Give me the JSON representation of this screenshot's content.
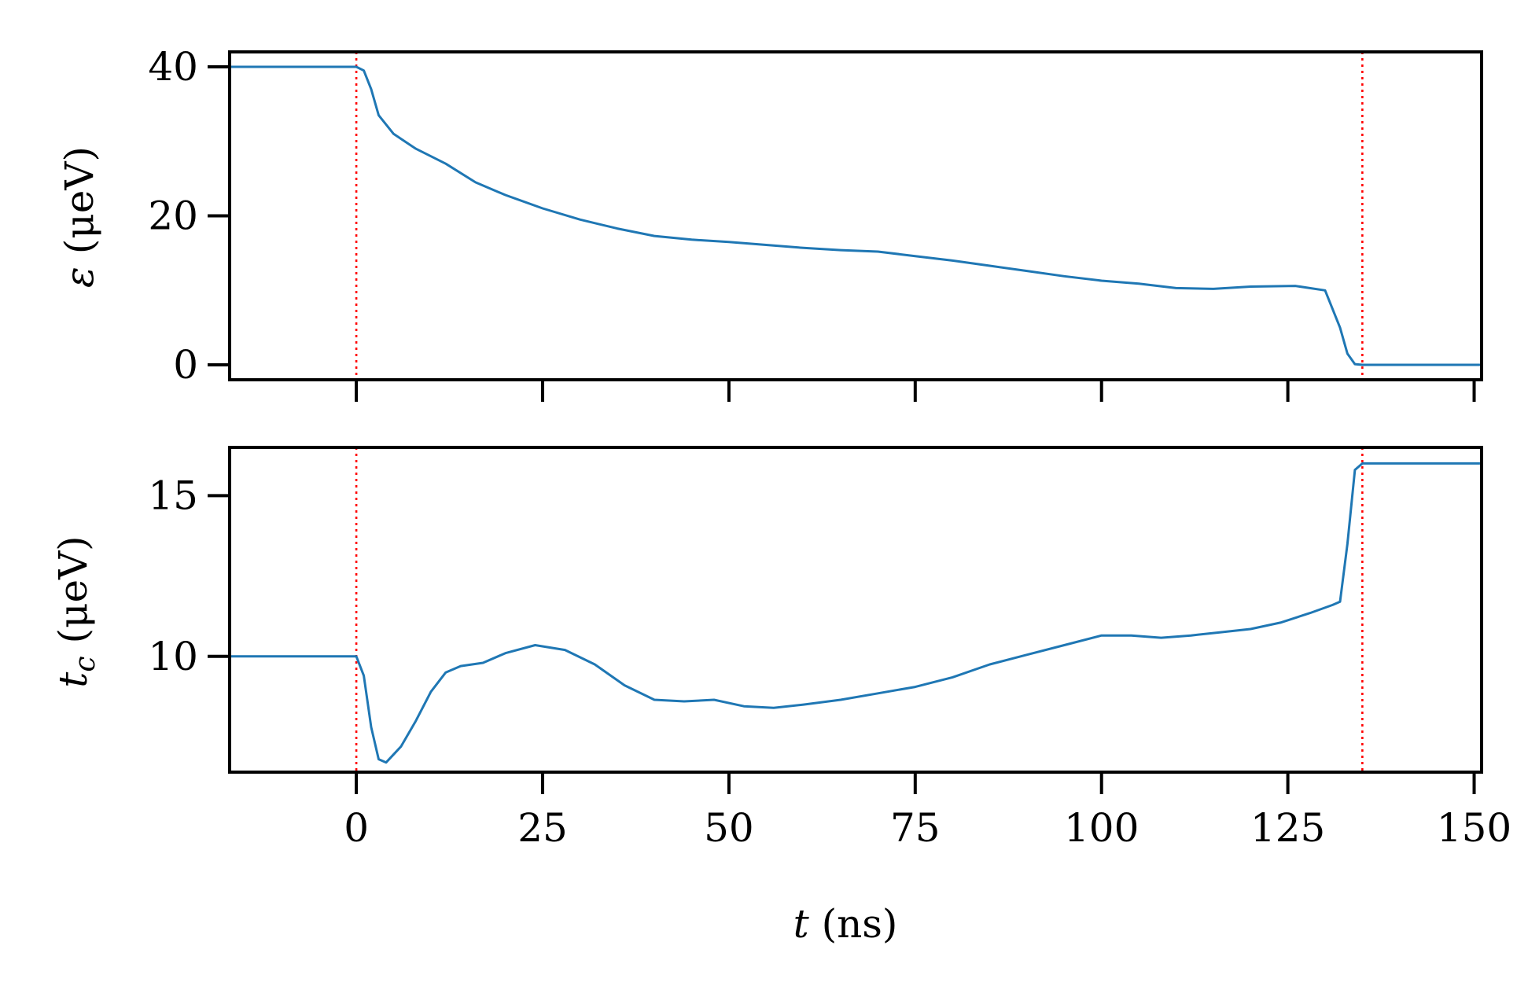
{
  "chart_data": [
    {
      "type": "line",
      "panel": "top",
      "ylabel": "ε (μeV)",
      "ylabel_parts": {
        "symbol": "ε",
        "unit": "(μeV)"
      },
      "xlim": [
        -17,
        151
      ],
      "ylim": [
        -2,
        42
      ],
      "xticks": [
        0,
        25,
        50,
        75,
        100,
        125,
        150
      ],
      "yticks": [
        0,
        20,
        40
      ],
      "ytick_labels": [
        "0",
        "20",
        "40"
      ],
      "vlines": {
        "x": [
          0,
          135
        ],
        "color": "#ff0000",
        "style": "dotted"
      },
      "series": [
        {
          "color": "#1f77b4",
          "x": [
            -17,
            -10,
            0,
            1,
            2,
            3,
            5,
            8,
            12,
            16,
            20,
            25,
            30,
            35,
            40,
            45,
            50,
            55,
            60,
            65,
            70,
            75,
            80,
            85,
            90,
            95,
            100,
            105,
            110,
            115,
            120,
            126,
            130,
            132,
            133,
            134,
            135,
            140,
            151
          ],
          "y": [
            40,
            40,
            40,
            39.5,
            37,
            33.5,
            31,
            29,
            27,
            24.5,
            22.8,
            21,
            19.5,
            18.3,
            17.3,
            16.8,
            16.5,
            16.1,
            15.7,
            15.4,
            15.2,
            14.6,
            14,
            13.3,
            12.6,
            11.9,
            11.3,
            10.9,
            10.3,
            10.2,
            10.5,
            10.6,
            10,
            5,
            1.5,
            0.1,
            0,
            0,
            0
          ]
        }
      ]
    },
    {
      "type": "line",
      "panel": "bottom",
      "xlabel": "t (ns)",
      "xlabel_parts": {
        "symbol": "t",
        "unit": "(ns)"
      },
      "ylabel": "t_c (μeV)",
      "ylabel_parts": {
        "symbol": "t",
        "subscript": "c",
        "unit": "(μeV)"
      },
      "xlim": [
        -17,
        151
      ],
      "ylim": [
        6.4,
        16.5
      ],
      "xticks": [
        0,
        25,
        50,
        75,
        100,
        125,
        150
      ],
      "xtick_labels": [
        "0",
        "25",
        "50",
        "75",
        "100",
        "125",
        "150"
      ],
      "yticks": [
        10,
        15
      ],
      "ytick_labels": [
        "10",
        "15"
      ],
      "vlines": {
        "x": [
          0,
          135
        ],
        "color": "#ff0000",
        "style": "dotted"
      },
      "series": [
        {
          "color": "#1f77b4",
          "x": [
            -17,
            -10,
            0,
            1,
            2,
            3,
            4,
            6,
            8,
            10,
            12,
            14,
            17,
            20,
            24,
            28,
            32,
            36,
            40,
            44,
            48,
            52,
            56,
            60,
            65,
            70,
            75,
            80,
            85,
            90,
            95,
            100,
            104,
            108,
            112,
            116,
            120,
            124,
            128,
            131,
            132,
            133,
            134,
            135,
            140,
            151
          ],
          "y": [
            10,
            10,
            10,
            9.4,
            7.8,
            6.8,
            6.7,
            7.2,
            8.0,
            8.9,
            9.5,
            9.7,
            9.8,
            10.1,
            10.35,
            10.2,
            9.75,
            9.1,
            8.65,
            8.6,
            8.65,
            8.45,
            8.4,
            8.5,
            8.65,
            8.85,
            9.05,
            9.35,
            9.75,
            10.05,
            10.35,
            10.65,
            10.65,
            10.58,
            10.65,
            10.75,
            10.85,
            11.05,
            11.35,
            11.6,
            11.7,
            13.5,
            15.8,
            16.0,
            16.0,
            16.0
          ]
        }
      ]
    }
  ]
}
